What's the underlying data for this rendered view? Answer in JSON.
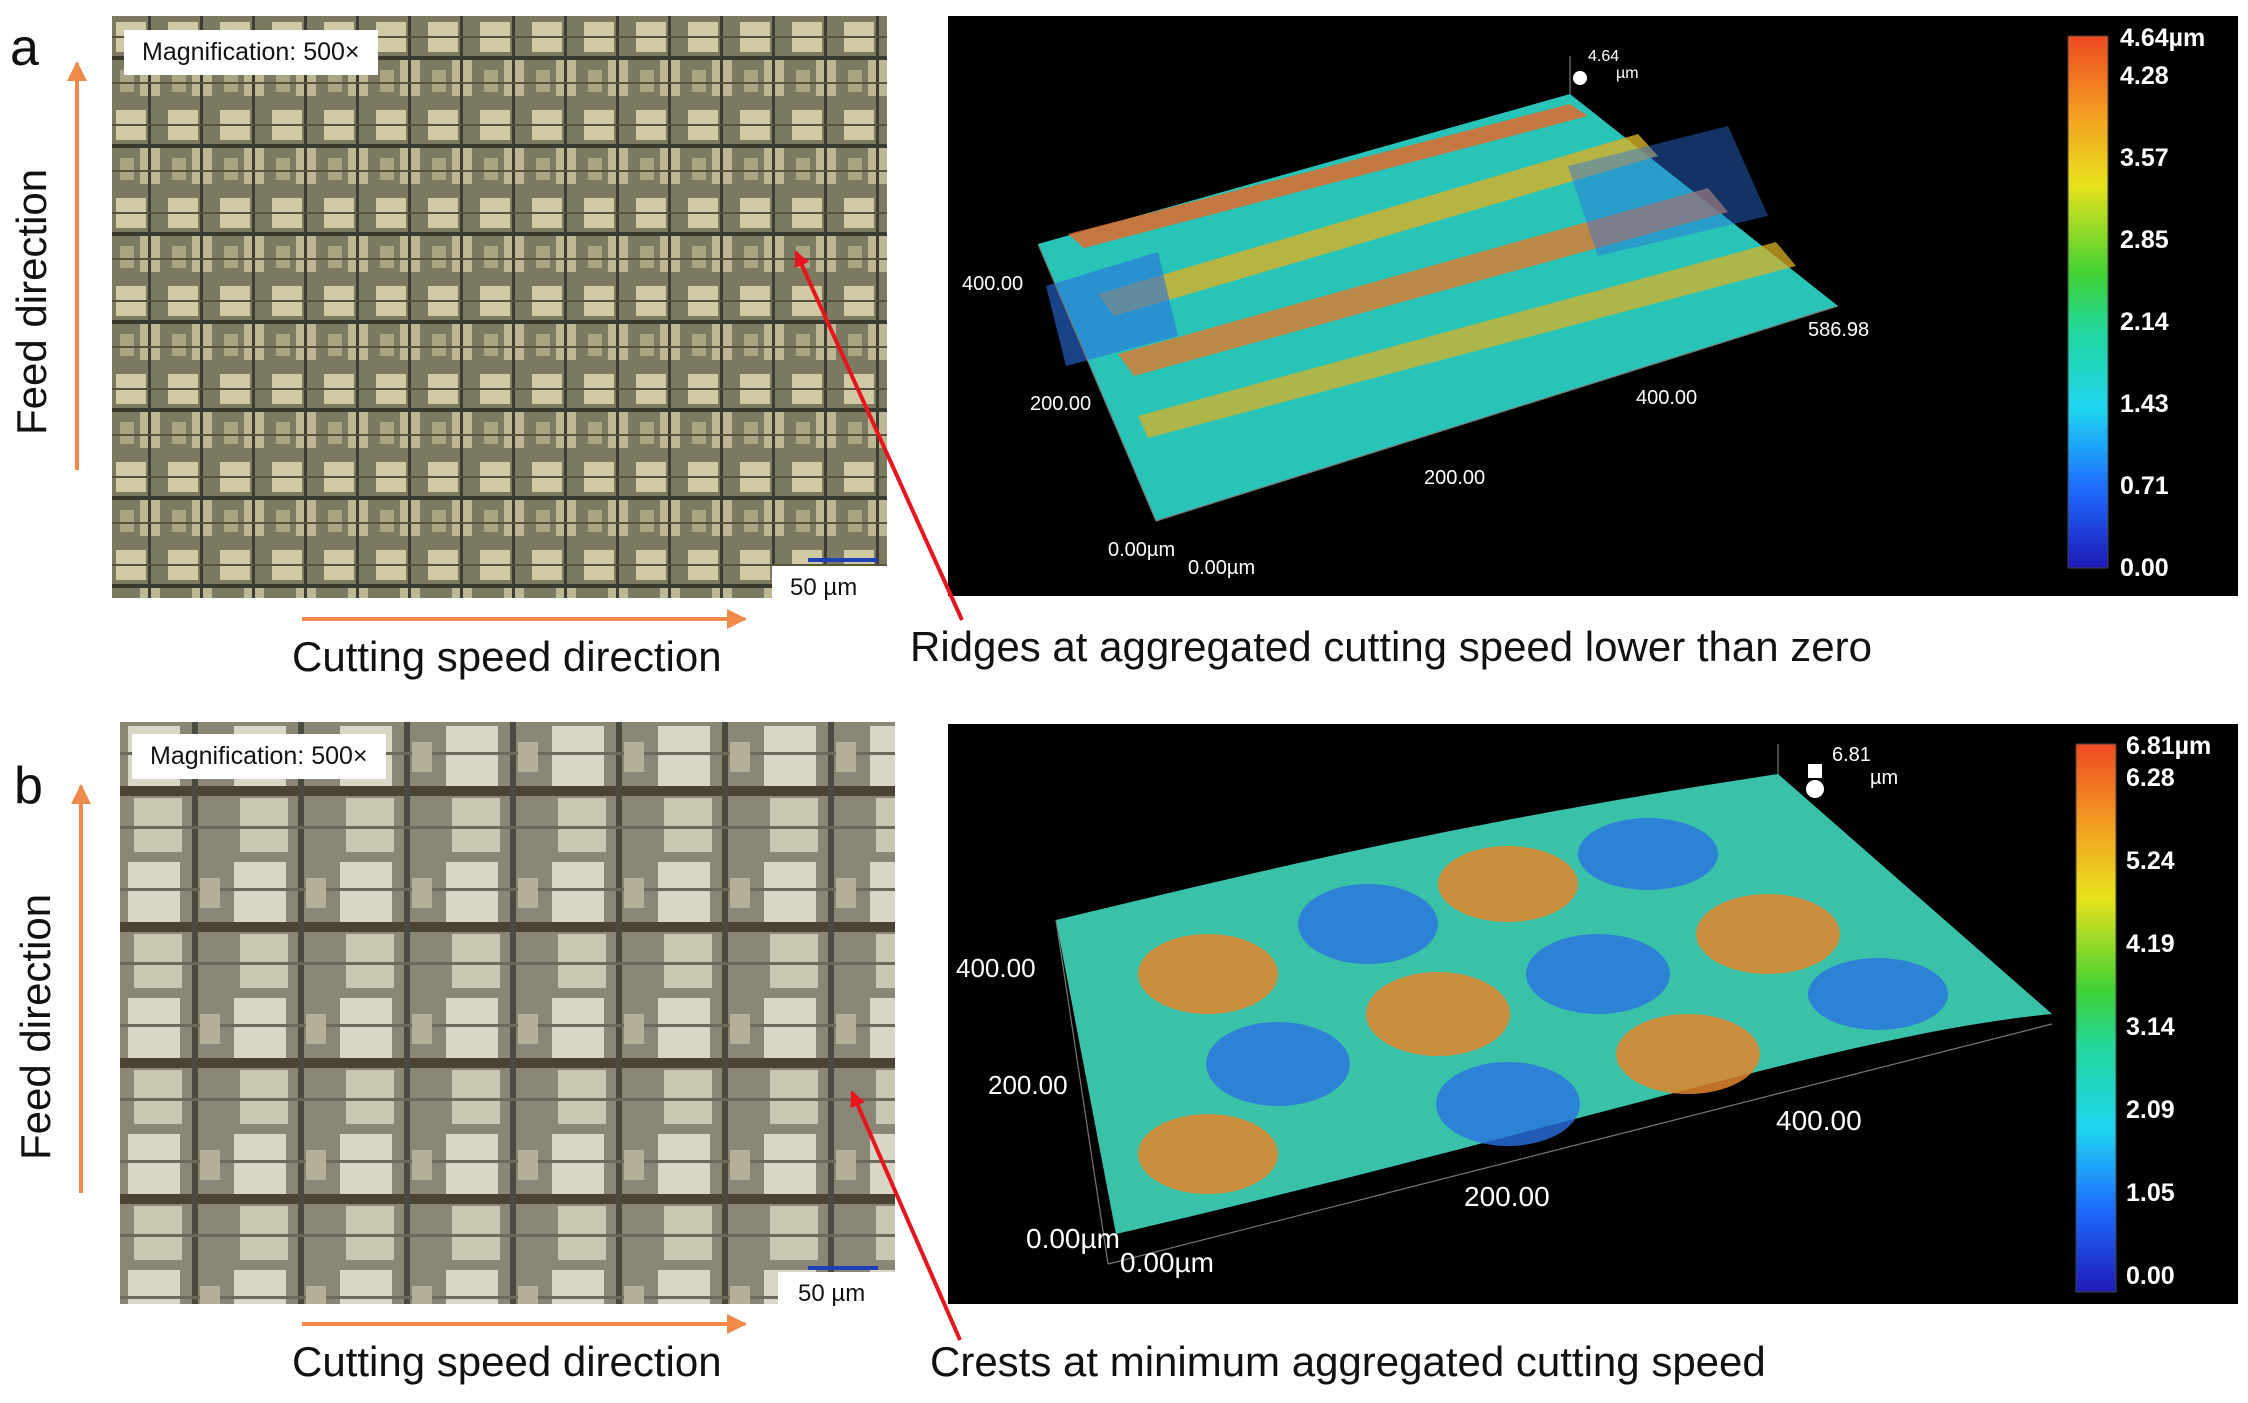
{
  "panel_a": {
    "letter": "a",
    "magnification": "Magnification: 500×",
    "scale_bar": "50 µm",
    "feed_direction": "Feed direction",
    "cutting_direction": "Cutting speed direction",
    "caption": "Ridges at aggregated cutting speed lower than zero",
    "topography": {
      "max_marker_value": "4.64",
      "max_marker_unit": "µm",
      "axis_labels": [
        "400.00",
        "200.00",
        "0.00µm",
        "0.00µm",
        "200.00",
        "400.00",
        "586.98"
      ],
      "colorbar_labels": [
        "4.64µm",
        "4.28",
        "3.57",
        "2.85",
        "2.14",
        "1.43",
        "0.71",
        "0.00"
      ]
    }
  },
  "panel_b": {
    "letter": "b",
    "magnification": "Magnification: 500×",
    "scale_bar": "50 µm",
    "feed_direction": "Feed direction",
    "cutting_direction": "Cutting speed direction",
    "caption": "Crests at minimum aggregated cutting speed",
    "topography": {
      "max_marker_value": "6.81",
      "max_marker_unit": "µm",
      "axis_labels": [
        "400.00",
        "200.00",
        "0.00µm",
        "0.00µm",
        "200.00",
        "400.00"
      ],
      "colorbar_labels": [
        "6.81µm",
        "6.28",
        "5.24",
        "4.19",
        "3.14",
        "2.09",
        "1.05",
        "0.00"
      ]
    }
  },
  "colors": {
    "arrow_orange": "#f08a4b",
    "pointer_red": "#e8141e",
    "scale_bar_blue": "#1f3fb5"
  }
}
